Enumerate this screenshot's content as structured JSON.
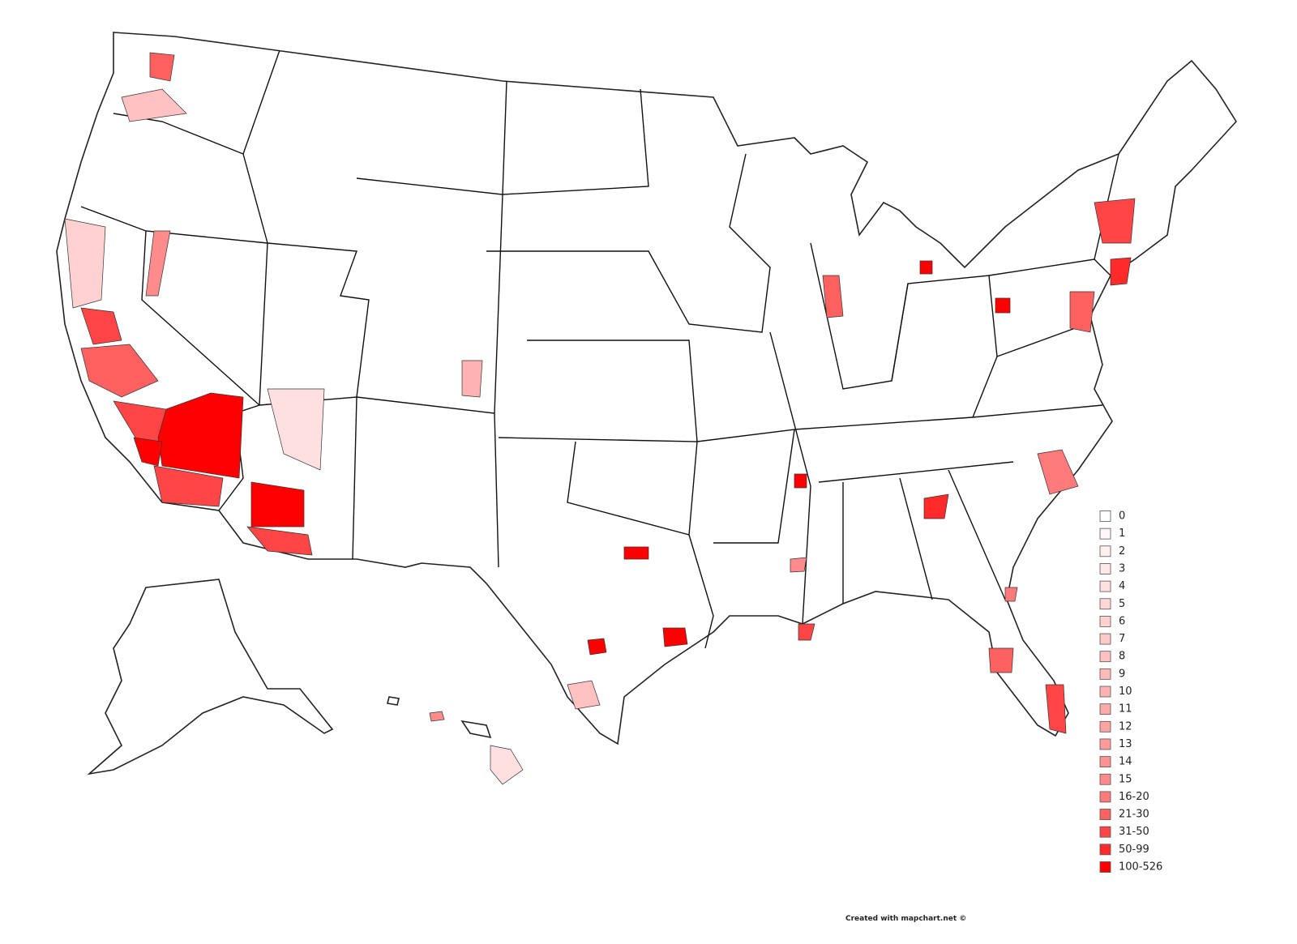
{
  "legend": {
    "items": [
      {
        "label": 0,
        "color": "#ffffff"
      },
      {
        "label": 1,
        "color": "#fff7f7"
      },
      {
        "label": 2,
        "color": "#ffefef"
      },
      {
        "label": 3,
        "color": "#ffe8e8"
      },
      {
        "label": 4,
        "color": "#ffe0e0"
      },
      {
        "label": 5,
        "color": "#ffd8d8"
      },
      {
        "label": 6,
        "color": "#ffd1d1"
      },
      {
        "label": 7,
        "color": "#ffc9c9"
      },
      {
        "label": 8,
        "color": "#ffc1c1"
      },
      {
        "label": 9,
        "color": "#ffbaba"
      },
      {
        "label": 10,
        "color": "#ffb2b2"
      },
      {
        "label": 11,
        "color": "#ffaaaa"
      },
      {
        "label": 12,
        "color": "#ffa3a3"
      },
      {
        "label": 13,
        "color": "#ff9b9b"
      },
      {
        "label": 14,
        "color": "#ff9393"
      },
      {
        "label": 15,
        "color": "#ff8c8c"
      },
      {
        "label": "16-20",
        "color": "#ff7a7a"
      },
      {
        "label": "21-30",
        "color": "#ff6060"
      },
      {
        "label": "31-50",
        "color": "#ff4545"
      },
      {
        "label": "50-99",
        "color": "#ff2a2a"
      },
      {
        "label": "100-526",
        "color": "#ff0000"
      }
    ]
  },
  "footer": {
    "credit": "Created with mapchart.net ©"
  }
}
